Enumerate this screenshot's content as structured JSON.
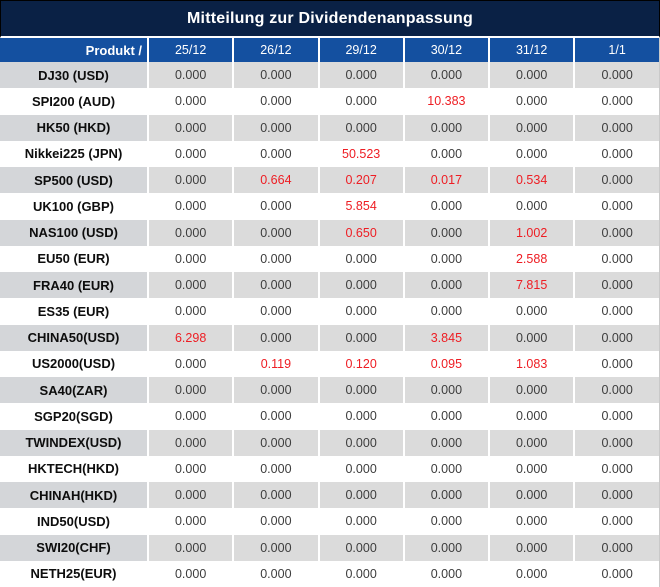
{
  "title": "Mitteilung zur Dividendenanpassung",
  "colors": {
    "title_bg": "#0a2145",
    "header_bg": "#1450a0",
    "row_alt_bg": "#dbdbdb",
    "product_alt_bg": "#d4d6d9",
    "value_text": "#3d3d3d",
    "red_text": "#ee1d23"
  },
  "table": {
    "product_header": "Produkt /",
    "date_headers": [
      "25/12",
      "26/12",
      "29/12",
      "30/12",
      "31/12",
      "1/1"
    ],
    "rows": [
      {
        "product": "DJ30 (USD)",
        "values": [
          "0.000",
          "0.000",
          "0.000",
          "0.000",
          "0.000",
          "0.000"
        ],
        "red": []
      },
      {
        "product": "SPI200 (AUD)",
        "values": [
          "0.000",
          "0.000",
          "0.000",
          "10.383",
          "0.000",
          "0.000"
        ],
        "red": [
          3
        ]
      },
      {
        "product": "HK50 (HKD)",
        "values": [
          "0.000",
          "0.000",
          "0.000",
          "0.000",
          "0.000",
          "0.000"
        ],
        "red": []
      },
      {
        "product": "Nikkei225 (JPN)",
        "values": [
          "0.000",
          "0.000",
          "50.523",
          "0.000",
          "0.000",
          "0.000"
        ],
        "red": [
          2
        ]
      },
      {
        "product": "SP500 (USD)",
        "values": [
          "0.000",
          "0.664",
          "0.207",
          "0.017",
          "0.534",
          "0.000"
        ],
        "red": [
          1,
          2,
          3,
          4
        ]
      },
      {
        "product": "UK100 (GBP)",
        "values": [
          "0.000",
          "0.000",
          "5.854",
          "0.000",
          "0.000",
          "0.000"
        ],
        "red": [
          2
        ]
      },
      {
        "product": "NAS100 (USD)",
        "values": [
          "0.000",
          "0.000",
          "0.650",
          "0.000",
          "1.002",
          "0.000"
        ],
        "red": [
          2,
          4
        ]
      },
      {
        "product": "EU50 (EUR)",
        "values": [
          "0.000",
          "0.000",
          "0.000",
          "0.000",
          "2.588",
          "0.000"
        ],
        "red": [
          4
        ]
      },
      {
        "product": "FRA40 (EUR)",
        "values": [
          "0.000",
          "0.000",
          "0.000",
          "0.000",
          "7.815",
          "0.000"
        ],
        "red": [
          4
        ]
      },
      {
        "product": "ES35 (EUR)",
        "values": [
          "0.000",
          "0.000",
          "0.000",
          "0.000",
          "0.000",
          "0.000"
        ],
        "red": []
      },
      {
        "product": "CHINA50(USD)",
        "values": [
          "6.298",
          "0.000",
          "0.000",
          "3.845",
          "0.000",
          "0.000"
        ],
        "red": [
          0,
          3
        ]
      },
      {
        "product": "US2000(USD)",
        "values": [
          "0.000",
          "0.119",
          "0.120",
          "0.095",
          "1.083",
          "0.000"
        ],
        "red": [
          1,
          2,
          3,
          4
        ]
      },
      {
        "product": "SA40(ZAR)",
        "values": [
          "0.000",
          "0.000",
          "0.000",
          "0.000",
          "0.000",
          "0.000"
        ],
        "red": []
      },
      {
        "product": "SGP20(SGD)",
        "values": [
          "0.000",
          "0.000",
          "0.000",
          "0.000",
          "0.000",
          "0.000"
        ],
        "red": []
      },
      {
        "product": "TWINDEX(USD)",
        "values": [
          "0.000",
          "0.000",
          "0.000",
          "0.000",
          "0.000",
          "0.000"
        ],
        "red": []
      },
      {
        "product": "HKTECH(HKD)",
        "values": [
          "0.000",
          "0.000",
          "0.000",
          "0.000",
          "0.000",
          "0.000"
        ],
        "red": []
      },
      {
        "product": "CHINAH(HKD)",
        "values": [
          "0.000",
          "0.000",
          "0.000",
          "0.000",
          "0.000",
          "0.000"
        ],
        "red": []
      },
      {
        "product": "IND50(USD)",
        "values": [
          "0.000",
          "0.000",
          "0.000",
          "0.000",
          "0.000",
          "0.000"
        ],
        "red": []
      },
      {
        "product": "SWI20(CHF)",
        "values": [
          "0.000",
          "0.000",
          "0.000",
          "0.000",
          "0.000",
          "0.000"
        ],
        "red": []
      },
      {
        "product": "NETH25(EUR)",
        "values": [
          "0.000",
          "0.000",
          "0.000",
          "0.000",
          "0.000",
          "0.000"
        ],
        "red": []
      }
    ]
  }
}
